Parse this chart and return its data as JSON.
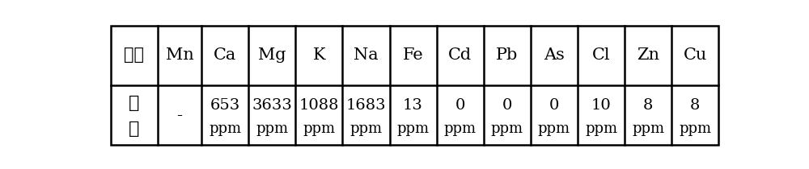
{
  "headers": [
    "元素",
    "Mn",
    "Ca",
    "Mg",
    "K",
    "Na",
    "Fe",
    "Cd",
    "Pb",
    "As",
    "Cl",
    "Zn",
    "Cu"
  ],
  "row1_label_line1": "除",
  "row1_label_line2": "杂",
  "row1_mn": "-",
  "row1_values_line1": [
    "653",
    "3633",
    "1088",
    "1683",
    "13",
    "0",
    "0",
    "0",
    "10",
    "8",
    "8"
  ],
  "row1_values_line2": [
    "ppm",
    "ppm",
    "ppm",
    "ppm",
    "ppm",
    "ppm",
    "ppm",
    "ppm",
    "ppm",
    "ppm",
    "ppm"
  ],
  "bg_color": "#ffffff",
  "border_color": "#000000",
  "fig_width": 10.0,
  "fig_height": 2.1
}
